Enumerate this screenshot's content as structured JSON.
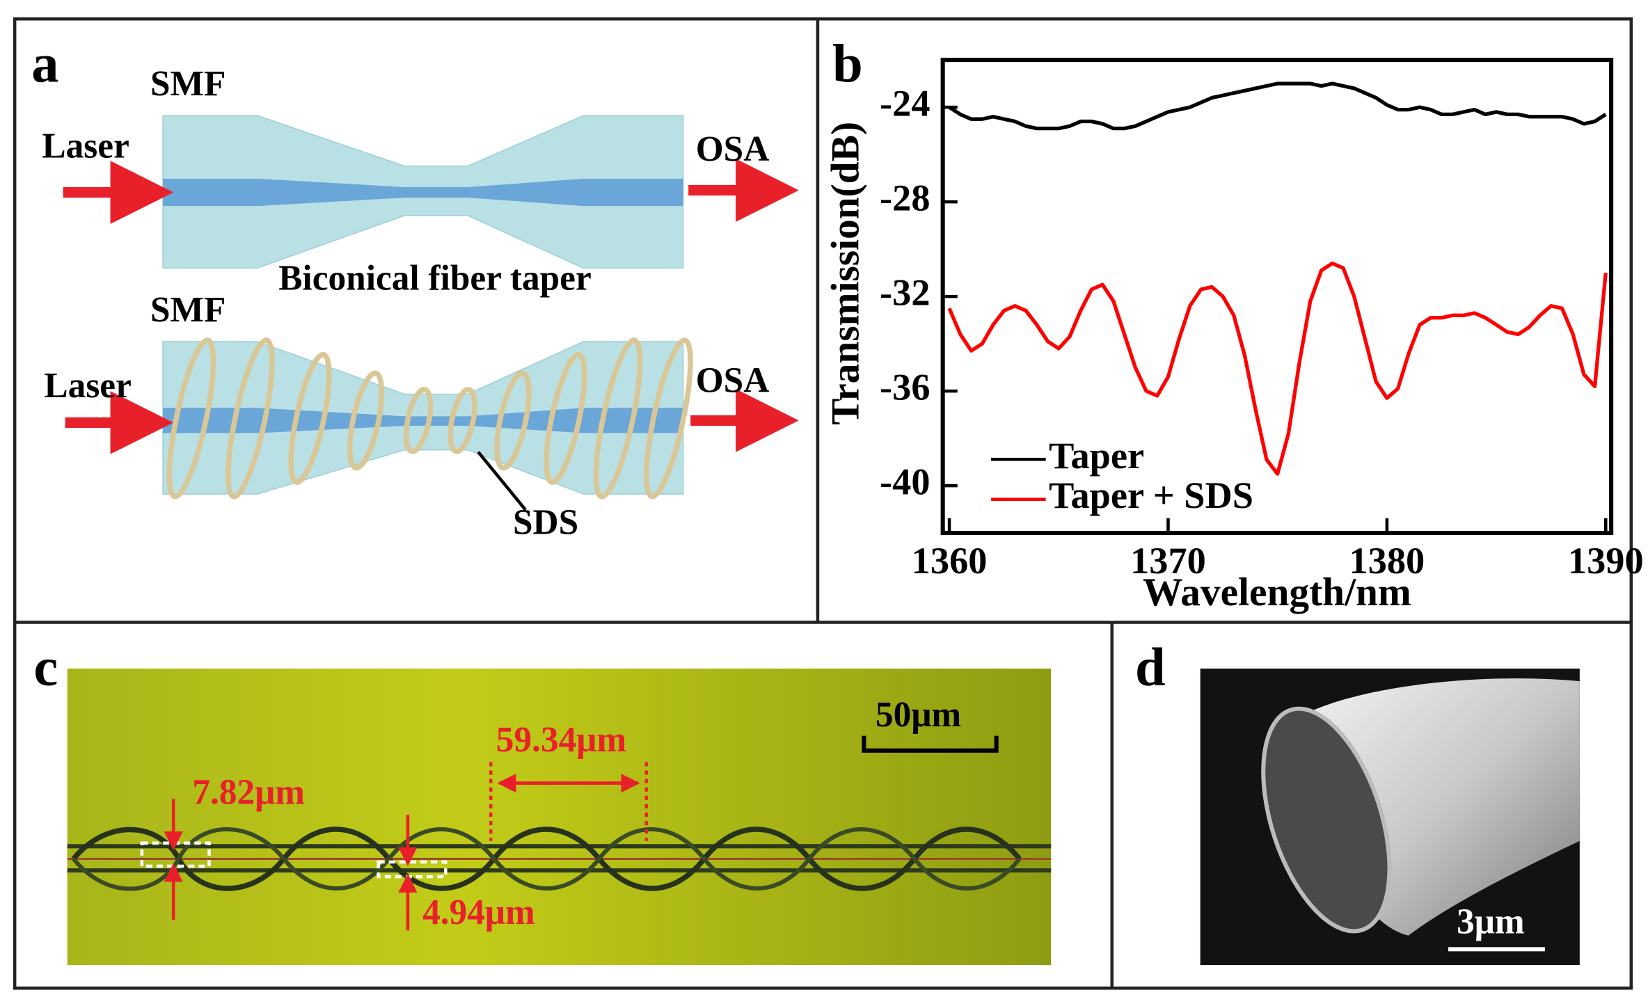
{
  "panels": {
    "a": {
      "label": "a",
      "top": {
        "fiber": "SMF",
        "input": "Laser",
        "output": "OSA",
        "caption": "Biconical fiber taper"
      },
      "bottom": {
        "fiber": "SMF",
        "input": "Laser",
        "output": "OSA",
        "coil": "SDS"
      }
    },
    "b": {
      "label": "b"
    },
    "c": {
      "label": "c",
      "pitch": "59.34μm",
      "coil_diameter": "7.82μm",
      "taper_diameter": "4.94μm",
      "scale_bar": "50μm"
    },
    "d": {
      "label": "d",
      "scale_bar": "3μm"
    }
  },
  "chart_data": {
    "type": "line",
    "xlabel": "Wavelength/nm",
    "ylabel": "Transmission(dB)",
    "xlim": [
      1359.7,
      1390.25
    ],
    "ylim": [
      -42,
      -22
    ],
    "xticks": [
      1360,
      1370,
      1380,
      1390
    ],
    "yticks": [
      -24,
      -28,
      -32,
      -36,
      -40
    ],
    "legend": "lower left",
    "x": [
      1360,
      1360.5,
      1361,
      1361.5,
      1362,
      1362.5,
      1363,
      1363.5,
      1364,
      1364.5,
      1365,
      1365.5,
      1366,
      1366.5,
      1367,
      1367.5,
      1368,
      1368.5,
      1369,
      1369.5,
      1370,
      1370.5,
      1371,
      1371.5,
      1372,
      1372.5,
      1373,
      1373.5,
      1374,
      1374.5,
      1375,
      1375.5,
      1376,
      1376.5,
      1377,
      1377.5,
      1378,
      1378.5,
      1379,
      1379.5,
      1380,
      1380.5,
      1381,
      1381.5,
      1382,
      1382.5,
      1383,
      1383.5,
      1384,
      1384.5,
      1385,
      1385.5,
      1386,
      1386.5,
      1387,
      1387.5,
      1388,
      1388.5,
      1389,
      1389.5,
      1390
    ],
    "series": [
      {
        "name": "Taper",
        "color": "#000000",
        "values": [
          -24.0,
          -24.3,
          -24.5,
          -24.5,
          -24.4,
          -24.5,
          -24.6,
          -24.8,
          -24.9,
          -24.9,
          -24.9,
          -24.8,
          -24.6,
          -24.6,
          -24.7,
          -24.9,
          -24.9,
          -24.8,
          -24.6,
          -24.4,
          -24.2,
          -24.1,
          -24.0,
          -23.8,
          -23.6,
          -23.5,
          -23.4,
          -23.3,
          -23.2,
          -23.1,
          -23.0,
          -23.0,
          -23.0,
          -23.0,
          -23.1,
          -23.0,
          -23.1,
          -23.2,
          -23.4,
          -23.6,
          -23.9,
          -24.1,
          -24.1,
          -24.0,
          -24.1,
          -24.3,
          -24.3,
          -24.2,
          -24.1,
          -24.3,
          -24.2,
          -24.3,
          -24.3,
          -24.4,
          -24.4,
          -24.4,
          -24.4,
          -24.5,
          -24.7,
          -24.6,
          -24.3
        ]
      },
      {
        "name": "Taper + SDS",
        "color": "#ff0000",
        "values": [
          -32.5,
          -33.6,
          -34.3,
          -34.0,
          -33.2,
          -32.6,
          -32.4,
          -32.6,
          -33.2,
          -33.9,
          -34.2,
          -33.7,
          -32.6,
          -31.7,
          -31.5,
          -32.2,
          -33.6,
          -35.0,
          -36.0,
          -36.2,
          -35.4,
          -33.8,
          -32.4,
          -31.7,
          -31.6,
          -32.0,
          -32.8,
          -34.5,
          -36.8,
          -38.9,
          -39.5,
          -37.8,
          -34.8,
          -32.2,
          -30.9,
          -30.6,
          -30.8,
          -32.0,
          -33.8,
          -35.6,
          -36.3,
          -35.9,
          -34.4,
          -33.2,
          -32.9,
          -32.9,
          -32.8,
          -32.8,
          -32.7,
          -32.9,
          -33.2,
          -33.5,
          -33.6,
          -33.3,
          -32.8,
          -32.4,
          -32.5,
          -33.6,
          -35.3,
          -35.8,
          -31.0
        ]
      }
    ]
  }
}
